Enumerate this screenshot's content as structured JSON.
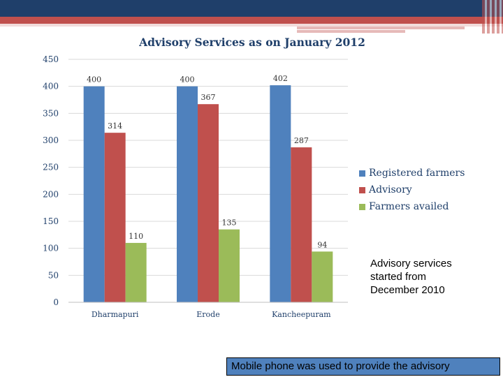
{
  "colors": {
    "accent": "#1f3f6a",
    "stripe": "#c0504d"
  },
  "chart_data": {
    "type": "bar",
    "title": "Advisory Services as on January 2012",
    "categories": [
      "Dharmapuri",
      "Erode",
      "Kancheepuram"
    ],
    "series": [
      {
        "name": "Registered farmers",
        "color": "#4f81bd",
        "values": [
          400,
          400,
          402
        ]
      },
      {
        "name": "Advisory",
        "color": "#c0504d",
        "values": [
          314,
          367,
          287
        ]
      },
      {
        "name": "Farmers availed",
        "color": "#9bbb59",
        "values": [
          110,
          135,
          94
        ]
      }
    ],
    "yticks": [
      0,
      50,
      100,
      150,
      200,
      250,
      300,
      350,
      400,
      450
    ],
    "ylim": [
      0,
      450
    ],
    "xlabel": "",
    "ylabel": "",
    "grid": true,
    "legend_position": "right"
  },
  "note": "Advisory services started from December 2010",
  "footer": "Mobile phone was used to provide the advisory"
}
